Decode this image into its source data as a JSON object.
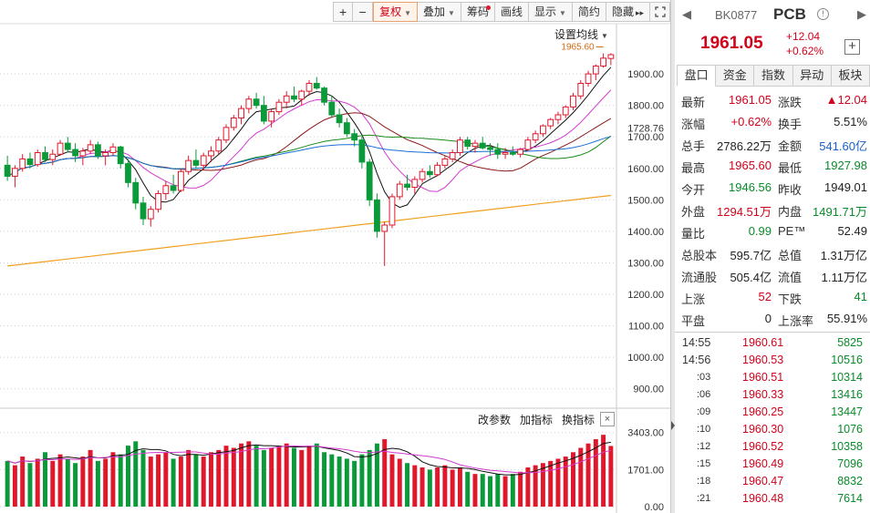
{
  "toolbar": {
    "zoom_in": "+",
    "zoom_out": "−",
    "adjust": "复权",
    "overlay": "叠加",
    "chips": "筹码",
    "draw": "画线",
    "display": "显示",
    "simple": "简约",
    "hide": "隐藏",
    "expand": "▸▸"
  },
  "ma_settings_label": "设置均线",
  "price_axis": {
    "ticks": [
      "1900.00",
      "1800.00",
      "1728.76",
      "1700.00",
      "1600.00",
      "1500.00",
      "1400.00",
      "1300.00",
      "1200.00",
      "1100.00",
      "1000.00",
      "900.00"
    ],
    "high_marker": "1965.60"
  },
  "indicator_bar": {
    "params": "改参数",
    "add": "加指标",
    "switch": "换指标",
    "close": "×"
  },
  "volume_axis": {
    "ticks": [
      "3403.00",
      "1701.00",
      "0.00"
    ]
  },
  "stock": {
    "code": "BK0877",
    "name": "PCB",
    "info_icon": "!",
    "price": "1961.05",
    "change": "+12.04",
    "change_pct": "+0.62%",
    "add": "+"
  },
  "tabs": [
    "盘口",
    "资金",
    "指数",
    "异动",
    "板块"
  ],
  "stats": [
    {
      "l1": "最新",
      "v1": "1961.05",
      "c1": "red",
      "l2": "涨跌",
      "v2": "▲12.04",
      "c2": "red"
    },
    {
      "l1": "涨幅",
      "v1": "+0.62%",
      "c1": "red",
      "l2": "换手",
      "v2": "5.51%",
      "c2": "blk"
    },
    {
      "l1": "总手",
      "v1": "2786.22万",
      "c1": "blk",
      "l2": "金额",
      "v2": "541.60亿",
      "c2": "blue"
    },
    {
      "l1": "最高",
      "v1": "1965.60",
      "c1": "red",
      "l2": "最低",
      "v2": "1927.98",
      "c2": "green"
    },
    {
      "l1": "今开",
      "v1": "1946.56",
      "c1": "green",
      "l2": "昨收",
      "v2": "1949.01",
      "c2": "blk"
    },
    {
      "l1": "外盘",
      "v1": "1294.51万",
      "c1": "red",
      "l2": "内盘",
      "v2": "1491.71万",
      "c2": "green"
    },
    {
      "l1": "量比",
      "v1": "0.99",
      "c1": "green",
      "l2": "PE™",
      "v2": "52.49",
      "c2": "blk"
    },
    {
      "l1": "总股本",
      "v1": "595.7亿",
      "c1": "blk",
      "l2": "总值",
      "v2": "1.31万亿",
      "c2": "blk"
    },
    {
      "l1": "流通股",
      "v1": "505.4亿",
      "c1": "blk",
      "l2": "流值",
      "v2": "1.11万亿",
      "c2": "blk"
    },
    {
      "l1": "上涨",
      "v1": "52",
      "c1": "red",
      "l2": "下跌",
      "v2": "41",
      "c2": "green"
    },
    {
      "l1": "平盘",
      "v1": "0",
      "c1": "blk",
      "l2": "上涨率",
      "v2": "55.91%",
      "c2": "blk"
    }
  ],
  "trades": [
    {
      "time": "14:55",
      "price": "1960.61",
      "vol": "5825",
      "short": false
    },
    {
      "time": "14:56",
      "price": "1960.53",
      "vol": "10516",
      "short": false
    },
    {
      "time": ":03",
      "price": "1960.51",
      "vol": "10314",
      "short": true
    },
    {
      "time": ":06",
      "price": "1960.33",
      "vol": "13416",
      "short": true
    },
    {
      "time": ":09",
      "price": "1960.25",
      "vol": "13447",
      "short": true
    },
    {
      "time": ":10",
      "price": "1960.30",
      "vol": "1076",
      "short": true
    },
    {
      "time": ":12",
      "price": "1960.52",
      "vol": "10358",
      "short": true
    },
    {
      "time": ":15",
      "price": "1960.49",
      "vol": "7096",
      "short": true
    },
    {
      "time": ":18",
      "price": "1960.47",
      "vol": "8832",
      "short": true
    },
    {
      "time": ":21",
      "price": "1960.48",
      "vol": "7614",
      "short": true
    }
  ],
  "chart_data": {
    "type": "candlestick",
    "price_ylim": [
      850,
      1990
    ],
    "volume_ylim": [
      0,
      3600
    ],
    "candles": [
      [
        1610,
        1640,
        1560,
        1575
      ],
      [
        1575,
        1610,
        1540,
        1600
      ],
      [
        1600,
        1645,
        1590,
        1630
      ],
      [
        1630,
        1650,
        1600,
        1612
      ],
      [
        1612,
        1660,
        1605,
        1650
      ],
      [
        1650,
        1670,
        1620,
        1628
      ],
      [
        1628,
        1660,
        1610,
        1645
      ],
      [
        1645,
        1690,
        1640,
        1680
      ],
      [
        1680,
        1700,
        1650,
        1660
      ],
      [
        1660,
        1680,
        1620,
        1640
      ],
      [
        1640,
        1665,
        1610,
        1655
      ],
      [
        1655,
        1690,
        1645,
        1675
      ],
      [
        1675,
        1685,
        1630,
        1640
      ],
      [
        1640,
        1660,
        1610,
        1650
      ],
      [
        1650,
        1680,
        1640,
        1668
      ],
      [
        1668,
        1672,
        1600,
        1615
      ],
      [
        1615,
        1630,
        1540,
        1555
      ],
      [
        1555,
        1570,
        1470,
        1490
      ],
      [
        1490,
        1510,
        1420,
        1440
      ],
      [
        1440,
        1480,
        1415,
        1470
      ],
      [
        1470,
        1530,
        1460,
        1520
      ],
      [
        1520,
        1560,
        1500,
        1545
      ],
      [
        1545,
        1580,
        1520,
        1530
      ],
      [
        1530,
        1600,
        1525,
        1590
      ],
      [
        1590,
        1640,
        1580,
        1625
      ],
      [
        1625,
        1660,
        1600,
        1610
      ],
      [
        1610,
        1650,
        1595,
        1640
      ],
      [
        1640,
        1670,
        1620,
        1655
      ],
      [
        1655,
        1700,
        1645,
        1690
      ],
      [
        1690,
        1740,
        1680,
        1730
      ],
      [
        1730,
        1770,
        1720,
        1760
      ],
      [
        1760,
        1800,
        1740,
        1790
      ],
      [
        1790,
        1830,
        1775,
        1820
      ],
      [
        1820,
        1840,
        1790,
        1800
      ],
      [
        1800,
        1830,
        1740,
        1750
      ],
      [
        1750,
        1790,
        1730,
        1780
      ],
      [
        1780,
        1820,
        1770,
        1810
      ],
      [
        1810,
        1845,
        1790,
        1830
      ],
      [
        1830,
        1860,
        1810,
        1820
      ],
      [
        1820,
        1850,
        1800,
        1845
      ],
      [
        1845,
        1880,
        1830,
        1870
      ],
      [
        1870,
        1890,
        1850,
        1855
      ],
      [
        1855,
        1860,
        1800,
        1810
      ],
      [
        1810,
        1830,
        1760,
        1770
      ],
      [
        1770,
        1790,
        1730,
        1745
      ],
      [
        1745,
        1760,
        1700,
        1710
      ],
      [
        1710,
        1725,
        1670,
        1690
      ],
      [
        1690,
        1700,
        1600,
        1620
      ],
      [
        1620,
        1630,
        1480,
        1500
      ],
      [
        1500,
        1520,
        1380,
        1400
      ],
      [
        1400,
        1430,
        1290,
        1420
      ],
      [
        1420,
        1520,
        1410,
        1510
      ],
      [
        1510,
        1560,
        1500,
        1550
      ],
      [
        1550,
        1580,
        1530,
        1540
      ],
      [
        1540,
        1575,
        1520,
        1565
      ],
      [
        1565,
        1600,
        1555,
        1590
      ],
      [
        1590,
        1610,
        1570,
        1580
      ],
      [
        1580,
        1620,
        1575,
        1610
      ],
      [
        1610,
        1640,
        1600,
        1630
      ],
      [
        1630,
        1660,
        1620,
        1650
      ],
      [
        1650,
        1700,
        1640,
        1690
      ],
      [
        1690,
        1700,
        1660,
        1670
      ],
      [
        1670,
        1690,
        1650,
        1680
      ],
      [
        1680,
        1700,
        1660,
        1665
      ],
      [
        1665,
        1680,
        1640,
        1660
      ],
      [
        1660,
        1680,
        1630,
        1645
      ],
      [
        1645,
        1665,
        1630,
        1650
      ],
      [
        1650,
        1670,
        1640,
        1645
      ],
      [
        1645,
        1665,
        1635,
        1660
      ],
      [
        1660,
        1700,
        1655,
        1690
      ],
      [
        1690,
        1720,
        1680,
        1710
      ],
      [
        1710,
        1740,
        1700,
        1735
      ],
      [
        1735,
        1760,
        1725,
        1755
      ],
      [
        1755,
        1780,
        1740,
        1770
      ],
      [
        1770,
        1800,
        1760,
        1795
      ],
      [
        1795,
        1840,
        1785,
        1830
      ],
      [
        1830,
        1880,
        1820,
        1870
      ],
      [
        1870,
        1910,
        1860,
        1900
      ],
      [
        1900,
        1930,
        1880,
        1925
      ],
      [
        1925,
        1965,
        1920,
        1950
      ],
      [
        1949,
        1966,
        1928,
        1961
      ]
    ],
    "volumes": [
      2100,
      1900,
      2300,
      2000,
      2200,
      2500,
      2100,
      2400,
      2200,
      2000,
      2300,
      2600,
      2100,
      2200,
      2500,
      2400,
      2800,
      3000,
      2600,
      2300,
      2400,
      2500,
      2200,
      2300,
      2600,
      2400,
      2300,
      2500,
      2600,
      2800,
      2700,
      2900,
      3000,
      2800,
      2600,
      2700,
      2800,
      2900,
      2700,
      2600,
      2800,
      2900,
      2500,
      2400,
      2300,
      2200,
      2100,
      2400,
      2600,
      2900,
      3100,
      2400,
      2200,
      2000,
      1900,
      1800,
      1700,
      1800,
      1900,
      1700,
      1800,
      1600,
      1500,
      1500,
      1400,
      1500,
      1400,
      1500,
      1600,
      1800,
      1900,
      2000,
      2100,
      2200,
      2300,
      2500,
      2700,
      2900,
      3100,
      3300,
      2786.22
    ]
  }
}
